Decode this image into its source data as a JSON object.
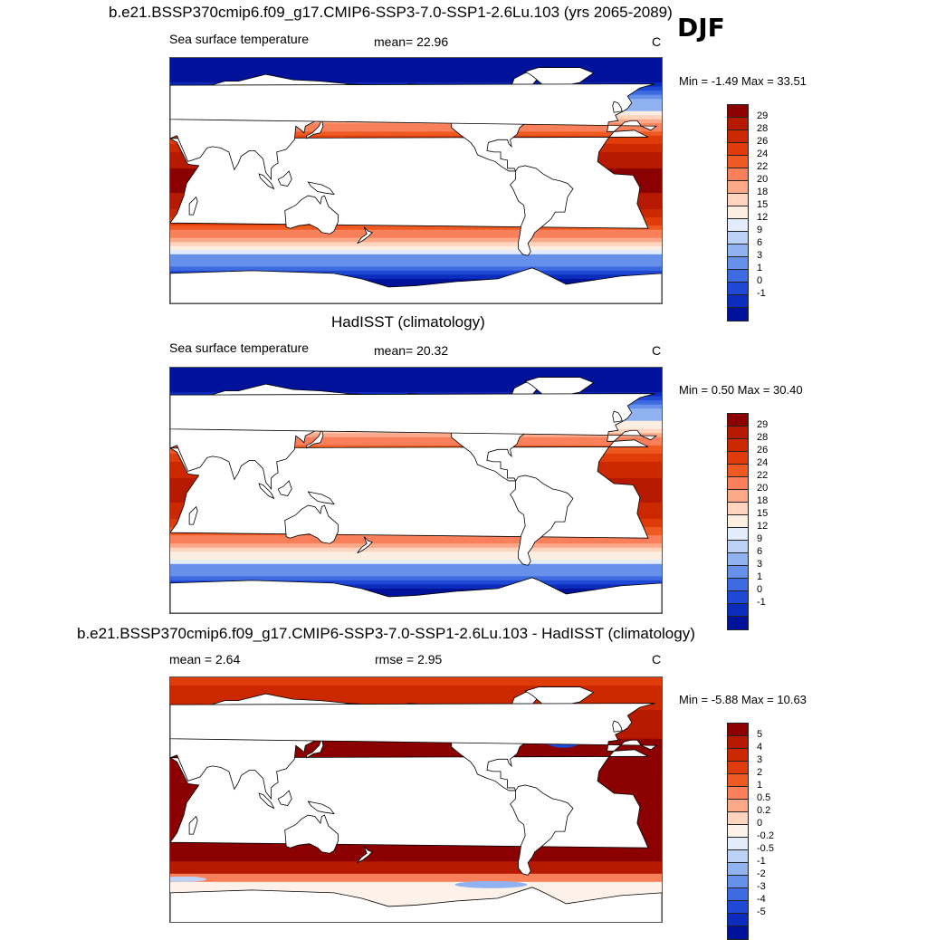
{
  "season": "DJF",
  "panels": [
    {
      "title": "b.e21.BSSP370cmip6.f09_g17.CMIP6-SSP3-7.0-SSP1-2.6Lu.103 (yrs 2065-2089)",
      "left_label": "Sea surface temperature",
      "mid_label": "mean=  22.96",
      "units": "C",
      "minmax": "Min =  -1.49 Max =  33.51",
      "levels": [
        "29",
        "28",
        "26",
        "24",
        "22",
        "20",
        "18",
        "15",
        "12",
        "9",
        "6",
        "3",
        "1",
        "0",
        "-1"
      ],
      "colors": [
        "#8b0000",
        "#b51a00",
        "#cc2800",
        "#e03c0a",
        "#ee5a22",
        "#f9805a",
        "#fca98a",
        "#fed4be",
        "#fdeee2",
        "#e3ecfb",
        "#bcd1f6",
        "#91b2f0",
        "#6690ea",
        "#3f6be2",
        "#1f48d4",
        "#0c2cbd",
        "#00129a"
      ],
      "type": "sst"
    },
    {
      "title": "HadISST (climatology)",
      "left_label": "Sea surface temperature",
      "mid_label": "mean=  20.32",
      "units": "C",
      "minmax": "Min =   0.50 Max =  30.40",
      "levels": [
        "29",
        "28",
        "26",
        "24",
        "22",
        "20",
        "18",
        "15",
        "12",
        "9",
        "6",
        "3",
        "1",
        "0",
        "-1"
      ],
      "colors": [
        "#8b0000",
        "#b51a00",
        "#cc2800",
        "#e03c0a",
        "#ee5a22",
        "#f9805a",
        "#fca98a",
        "#fed4be",
        "#fdeee2",
        "#e3ecfb",
        "#bcd1f6",
        "#91b2f0",
        "#6690ea",
        "#3f6be2",
        "#1f48d4",
        "#0c2cbd",
        "#00129a"
      ],
      "type": "obs"
    },
    {
      "title": "b.e21.BSSP370cmip6.f09_g17.CMIP6-SSP3-7.0-SSP1-2.6Lu.103 - HadISST (climatology)",
      "left_label": "mean =   2.64",
      "mid_label": "rmse =   2.95",
      "units": "C",
      "minmax": "Min =  -5.88 Max =  10.63",
      "levels": [
        "5",
        "4",
        "3",
        "2",
        "1",
        "0.5",
        "0.2",
        "0",
        "-0.2",
        "-0.5",
        "-1",
        "-2",
        "-3",
        "-4",
        "-5"
      ],
      "colors": [
        "#8b0000",
        "#b51a00",
        "#cc2800",
        "#e03c0a",
        "#ee5a22",
        "#f9805a",
        "#fca98a",
        "#fed4be",
        "#fdf2ea",
        "#e3ecfb",
        "#bcd1f6",
        "#91b2f0",
        "#6690ea",
        "#3f6be2",
        "#1f48d4",
        "#0c2cbd",
        "#00129a"
      ],
      "type": "diff"
    }
  ]
}
